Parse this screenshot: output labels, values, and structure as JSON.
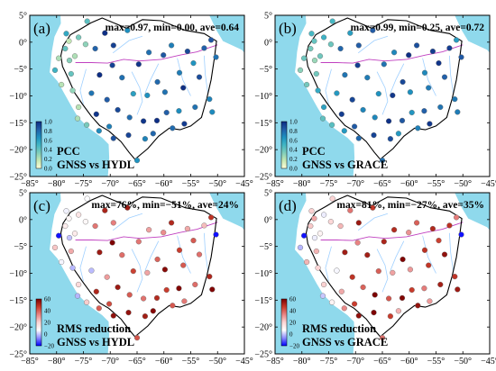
{
  "colors": {
    "sea": "#8fd9ec",
    "land": "#ffffff",
    "frame": "#000000",
    "boundary": "#000000",
    "river_main": "#c040c0",
    "river_minor": "#9fd0ff",
    "pcc_ramp": [
      "#ffffd9",
      "#c7e9b4",
      "#7fcdbb",
      "#41b6c4",
      "#1d91c0",
      "#225ea8",
      "#0c2c84"
    ],
    "rms_ramp": [
      "#0000ff",
      "#8c8cff",
      "#ffffff",
      "#fbd5d5",
      "#e98585",
      "#c83a2a",
      "#7a0000"
    ]
  },
  "axes": {
    "x_ticks": [
      "−85°",
      "−80°",
      "−75°",
      "−70°",
      "−65°",
      "−60°",
      "−55°",
      "−50°",
      "−45°"
    ],
    "y_ticks": [
      "5°",
      "0°",
      "−5°",
      "−10°",
      "−15°",
      "−20°",
      "−25°"
    ]
  },
  "panels": [
    {
      "letter": "(a)",
      "stats": "max=0.97, min=0.00, ave=0.64",
      "metric": "PCC",
      "comparison": "GNSS vs HYDL",
      "cbar_ticks": [
        "1.0",
        "0.8",
        "0.6",
        "0.4",
        "0.2",
        "0.0"
      ],
      "scale": "pcc"
    },
    {
      "letter": "(b)",
      "stats": "max=0.99, min=0.25, ave=0.72",
      "metric": "PCC",
      "comparison": "GNSS vs GRACE",
      "cbar_ticks": [
        "1.0",
        "0.8",
        "0.6",
        "0.4",
        "0.2",
        "0.0"
      ],
      "scale": "pcc"
    },
    {
      "letter": "(c)",
      "stats": "max=76%, min=−51%, ave=24%",
      "metric": "RMS reduction",
      "comparison": "GNSS vs HYDL",
      "cbar_ticks": [
        "60",
        "40",
        "20",
        "0",
        "−20"
      ],
      "scale": "rms"
    },
    {
      "letter": "(d)",
      "stats": "max=81%, min=−27%, ave=35%",
      "metric": "RMS reduction",
      "comparison": "GNSS vs GRACE",
      "cbar_ticks": [
        "60",
        "40",
        "20",
        "0",
        "−20"
      ],
      "scale": "rms"
    }
  ]
}
